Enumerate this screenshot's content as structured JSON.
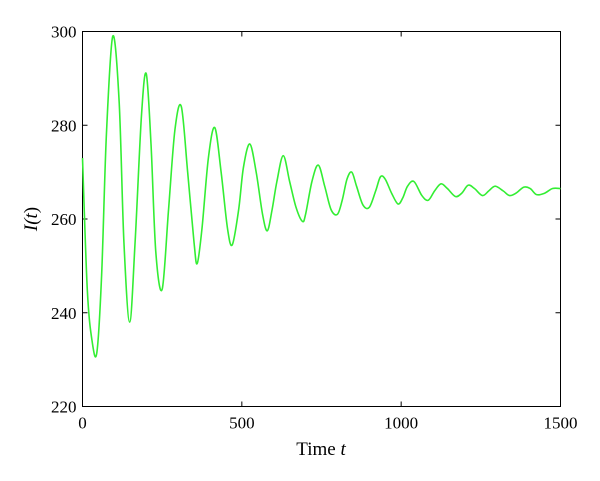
{
  "chart_data": {
    "type": "line",
    "xlabel_prefix": "Time ",
    "xlabel_var": "t",
    "ylabel_prefix": "I(",
    "ylabel_var": "t",
    "ylabel_suffix": ")",
    "xlim": [
      0,
      1500
    ],
    "ylim": [
      220,
      300
    ],
    "xticks": [
      0,
      500,
      1000,
      1500
    ],
    "yticks": [
      220,
      240,
      260,
      280,
      300
    ],
    "grid": false,
    "line_color": "#33ee33",
    "series": [
      {
        "x": [
          0,
          15,
          30,
          45,
          60,
          75,
          95,
          115,
          130,
          148,
          165,
          185,
          200,
          215,
          230,
          250,
          270,
          290,
          310,
          330,
          350,
          360,
          375,
          395,
          415,
          435,
          455,
          470,
          490,
          505,
          525,
          545,
          565,
          580,
          595,
          610,
          630,
          650,
          670,
          690,
          700,
          720,
          740,
          760,
          780,
          800,
          815,
          830,
          845,
          860,
          880,
          900,
          920,
          935,
          950,
          970,
          990,
          1005,
          1020,
          1040,
          1065,
          1085,
          1105,
          1125,
          1145,
          1170,
          1190,
          1210,
          1230,
          1255,
          1275,
          1295,
          1320,
          1340,
          1360,
          1385,
          1405,
          1425,
          1450,
          1475,
          1500
        ],
        "y": [
          273,
          245,
          234,
          231.5,
          248,
          278,
          299,
          285,
          255,
          238,
          255,
          282,
          291,
          276,
          253,
          245,
          262,
          279,
          284,
          270,
          255,
          250.5,
          258,
          273,
          279.5,
          270,
          258,
          254.5,
          262,
          271,
          276,
          270,
          261,
          257.5,
          262,
          268,
          273.5,
          268,
          262.5,
          259.5,
          261,
          268,
          271.5,
          267,
          262,
          261,
          264,
          268.5,
          270,
          267,
          263,
          262.5,
          266,
          269,
          268.5,
          265.5,
          263.2,
          264.5,
          267,
          268,
          265,
          264,
          266,
          267.5,
          266.5,
          264.8,
          265.5,
          267.2,
          266.5,
          265,
          266,
          267,
          266,
          265,
          265.5,
          266.8,
          266.5,
          265.2,
          265.5,
          266.5,
          266.5
        ]
      }
    ]
  }
}
